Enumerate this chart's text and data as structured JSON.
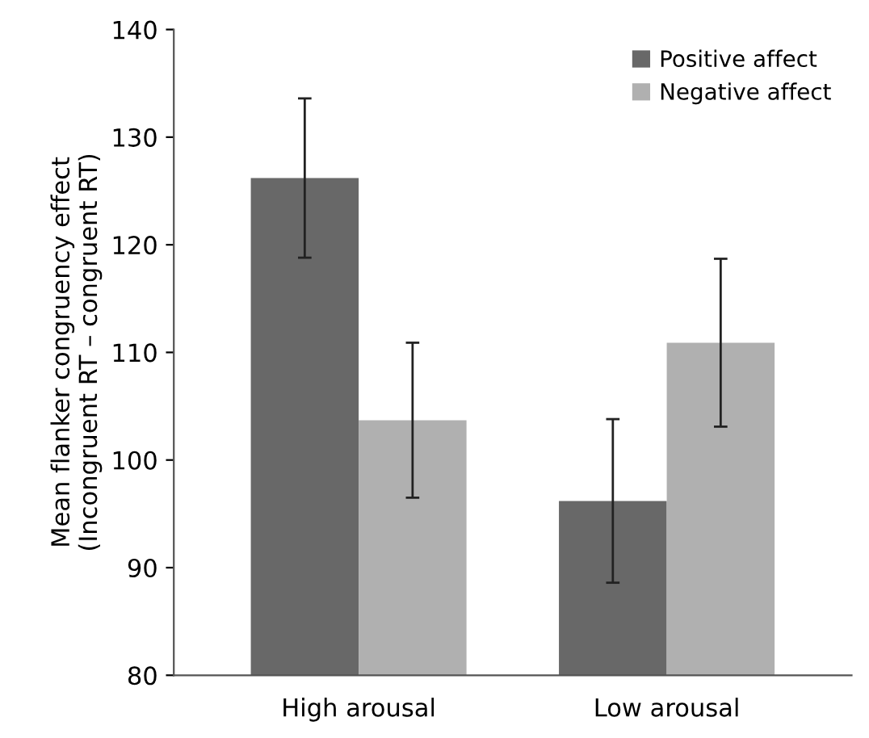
{
  "chart_data": {
    "type": "bar",
    "ylabel": "Mean flanker congruency effect\n(Incongruent RT – congruent RT)",
    "categories": [
      "High arousal",
      "Low arousal"
    ],
    "series": [
      {
        "name": "Positive affect",
        "color": "#686868",
        "values": [
          126.2,
          96.2
        ],
        "errors": [
          7.4,
          7.6
        ]
      },
      {
        "name": "Negative affect",
        "color": "#b0b0b0",
        "values": [
          103.7,
          110.9
        ],
        "errors": [
          7.2,
          7.8
        ]
      }
    ],
    "ylim": [
      80,
      140
    ],
    "yticks": [
      80,
      90,
      100,
      110,
      120,
      130,
      140
    ],
    "grid": false,
    "legend": "top right"
  }
}
